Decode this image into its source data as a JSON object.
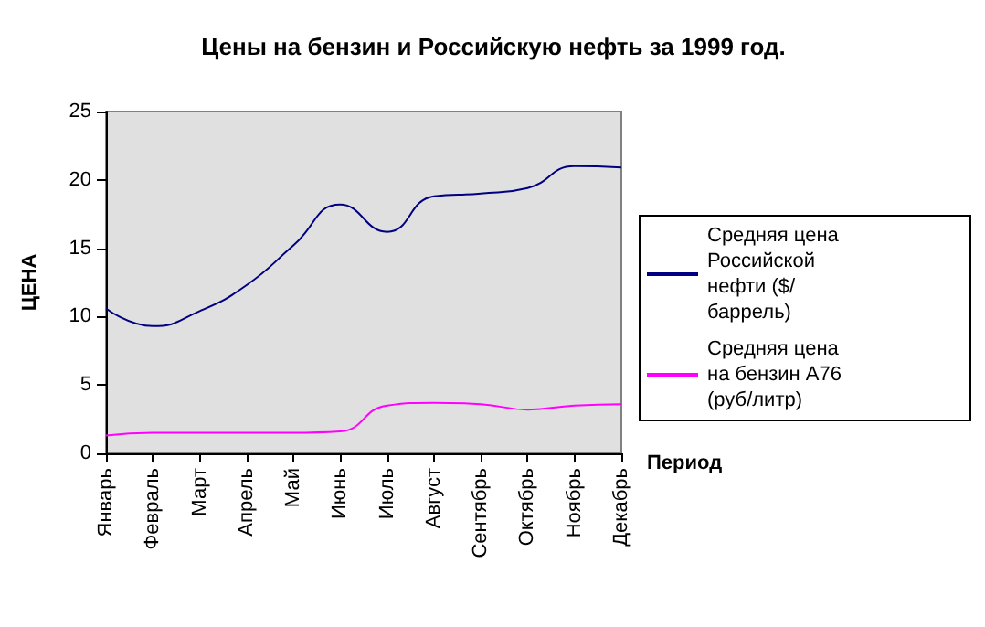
{
  "chart_data": {
    "type": "line",
    "title": "Цены на бензин и Российскую нефть за 1999 год.",
    "xlabel": "Период",
    "ylabel": "ЦЕНА",
    "categories": [
      "Январь",
      "Февраль",
      "Март",
      "Апрель",
      "Май",
      "Июнь",
      "Июль",
      "Август",
      "Сентябрь",
      "Октябрь",
      "Ноябрь",
      "Декабрь"
    ],
    "series": [
      {
        "name": "Средняя цена Российской нефти ($/баррель)",
        "color": "#000080",
        "values": [
          10.6,
          9.3,
          10.4,
          12.3,
          15.2,
          18.2,
          16.2,
          18.8,
          19.0,
          19.4,
          21.0,
          20.9
        ]
      },
      {
        "name": "Средняя цена на бензин A76 (руб/литр)",
        "color": "#ff00ff",
        "values": [
          1.3,
          1.5,
          1.5,
          1.5,
          1.5,
          1.6,
          3.5,
          3.7,
          3.6,
          3.2,
          3.5,
          3.6
        ]
      }
    ],
    "ylim": [
      0,
      25
    ],
    "yticks": [
      0,
      5,
      10,
      15,
      20,
      25
    ],
    "grid": false,
    "legend": "right",
    "marker": "none",
    "line_style": "solid"
  }
}
